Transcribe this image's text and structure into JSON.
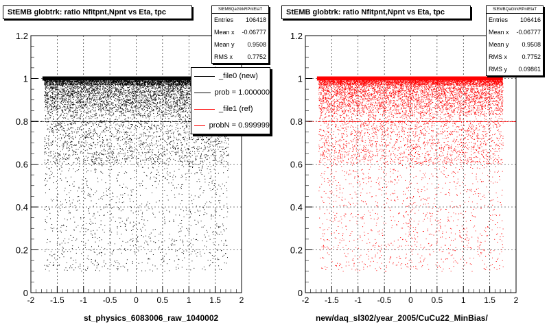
{
  "chart_data": [
    {
      "type": "scatter",
      "title": "StEMB globtrk: ratio Nfitpnt,Npnt vs Eta, tpc",
      "xlabel": "st_physics_6083006_raw_1040002",
      "ylabel": "",
      "xlim": [
        -2,
        2
      ],
      "ylim": [
        0,
        1.2
      ],
      "xticks": [
        "-2",
        "-1.5",
        "-1",
        "-0.5",
        "0",
        "0.5",
        "1",
        "1.5",
        "2"
      ],
      "yticks": [
        "0",
        "0.2",
        "0.4",
        "0.6",
        "0.8",
        "1",
        "1.2"
      ],
      "grid": true,
      "point_color": "#000000",
      "stats": {
        "name": "StEMBQaGtrkRPntEtaT",
        "entries": "106418",
        "mean_x": "-0.06777",
        "mean_y": "0.9508",
        "rms_x": "0.7752"
      },
      "legend": [
        {
          "label": "_file0 (new)",
          "color": "#000000"
        },
        {
          "label": "prob = 1.000000",
          "color": "#000000"
        },
        {
          "label": "_file1 (ref)",
          "color": "#ff0000"
        },
        {
          "label": "probN = 0.999999",
          "color": "#ff0000"
        }
      ]
    },
    {
      "type": "scatter",
      "title": "StEMB globtrk: ratio Nfitpnt,Npnt vs Eta, tpc",
      "xlabel": "new/daq_sl302/year_2005/CuCu22_MinBias/",
      "ylabel": "",
      "xlim": [
        -2,
        2
      ],
      "ylim": [
        0,
        1.2
      ],
      "xticks": [
        "-2",
        "-1.5",
        "-1",
        "-0.5",
        "0",
        "0.5",
        "1",
        "1.5",
        "2"
      ],
      "yticks": [
        "0",
        "0.2",
        "0.4",
        "0.6",
        "0.8",
        "1",
        "1.2"
      ],
      "grid": true,
      "point_color": "#ff0000",
      "stats": {
        "name": "StEMBQaGtrkRPntEtaT",
        "entries": "106416",
        "mean_x": "-0.06777",
        "mean_y": "0.9508",
        "rms_x": "0.7752",
        "rms_y": "0.09861"
      }
    }
  ]
}
